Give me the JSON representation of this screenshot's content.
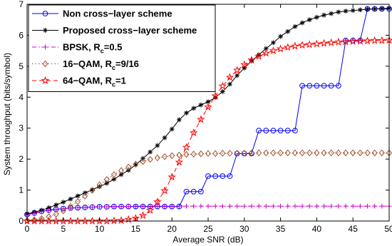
{
  "chart_data": {
    "type": "line",
    "title": "",
    "xlabel": "Average SNR (dB)",
    "ylabel": "System throughput (bits/symbol)",
    "xlim": [
      0,
      50
    ],
    "ylim": [
      0,
      7
    ],
    "xticks": [
      0,
      5,
      10,
      15,
      20,
      25,
      30,
      35,
      40,
      45,
      50
    ],
    "yticks": [
      0,
      1,
      2,
      3,
      4,
      5,
      6,
      7
    ],
    "grid": false,
    "legend_position": "top-left",
    "series": [
      {
        "name": "Non cross-layer scheme",
        "legend_main": "Non cross−layer scheme",
        "legend_sub": "",
        "legend_tail": "",
        "color": "#0000ff",
        "linestyle": "solid",
        "marker": "circle",
        "x": [
          0,
          1,
          2,
          3,
          4,
          5,
          6,
          7,
          8,
          9,
          10,
          11,
          12,
          13,
          14,
          15,
          16,
          17,
          18,
          19,
          20,
          21,
          22,
          23,
          24,
          25,
          26,
          27,
          28,
          29,
          30,
          31,
          32,
          33,
          34,
          35,
          36,
          37,
          38,
          39,
          40,
          41,
          42,
          43,
          44,
          45,
          46,
          47,
          48,
          49,
          50
        ],
        "y": [
          0.21,
          0.26,
          0.31,
          0.35,
          0.38,
          0.4,
          0.42,
          0.43,
          0.44,
          0.45,
          0.46,
          0.46,
          0.47,
          0.47,
          0.47,
          0.47,
          0.47,
          0.47,
          0.47,
          0.47,
          0.47,
          0.47,
          0.95,
          0.95,
          0.95,
          1.45,
          1.45,
          1.45,
          1.45,
          2.18,
          2.18,
          2.18,
          2.92,
          2.92,
          2.92,
          2.92,
          2.92,
          2.92,
          4.37,
          4.37,
          4.37,
          4.37,
          4.37,
          4.37,
          5.83,
          5.83,
          5.83,
          6.85,
          6.85,
          6.85,
          6.85
        ]
      },
      {
        "name": "Proposed cross-layer scheme",
        "legend_main": "Proposed cross−layer scheme",
        "legend_sub": "",
        "legend_tail": "",
        "color": "#000000",
        "linestyle": "solid",
        "marker": "asterisk",
        "x": [
          0,
          1,
          2,
          3,
          4,
          5,
          6,
          7,
          8,
          9,
          10,
          11,
          12,
          13,
          14,
          15,
          16,
          17,
          18,
          19,
          20,
          21,
          22,
          23,
          24,
          25,
          26,
          27,
          28,
          29,
          30,
          31,
          32,
          33,
          34,
          35,
          36,
          37,
          38,
          39,
          40,
          41,
          42,
          43,
          44,
          45,
          46,
          47,
          48,
          49,
          50
        ],
        "y": [
          0.23,
          0.29,
          0.35,
          0.43,
          0.52,
          0.61,
          0.71,
          0.81,
          0.91,
          1.01,
          1.11,
          1.22,
          1.35,
          1.5,
          1.64,
          1.82,
          2.02,
          2.23,
          2.44,
          2.69,
          2.97,
          3.27,
          3.49,
          3.64,
          3.75,
          3.85,
          3.99,
          4.18,
          4.42,
          4.7,
          4.94,
          5.17,
          5.37,
          5.57,
          5.76,
          5.96,
          6.12,
          6.28,
          6.4,
          6.5,
          6.58,
          6.65,
          6.7,
          6.75,
          6.78,
          6.8,
          6.82,
          6.84,
          6.85,
          6.86,
          6.87
        ]
      },
      {
        "name": "BPSK, R_c=0.5",
        "legend_main": "BPSK, R",
        "legend_sub": "c",
        "legend_tail": "=0.5",
        "color": "#cc00cc",
        "linestyle": "dashdot",
        "marker": "plus",
        "x": [
          0,
          1,
          2,
          3,
          4,
          5,
          6,
          7,
          8,
          9,
          10,
          11,
          12,
          13,
          14,
          15,
          16,
          17,
          18,
          19,
          20,
          21,
          22,
          23,
          24,
          25,
          26,
          27,
          28,
          29,
          30,
          31,
          32,
          33,
          34,
          35,
          36,
          37,
          38,
          39,
          40,
          41,
          42,
          43,
          44,
          45,
          46,
          47,
          48,
          49,
          50
        ],
        "y": [
          0.2,
          0.25,
          0.3,
          0.34,
          0.37,
          0.4,
          0.42,
          0.43,
          0.44,
          0.45,
          0.46,
          0.46,
          0.47,
          0.47,
          0.47,
          0.48,
          0.48,
          0.48,
          0.48,
          0.48,
          0.48,
          0.48,
          0.48,
          0.48,
          0.48,
          0.48,
          0.48,
          0.48,
          0.48,
          0.48,
          0.48,
          0.48,
          0.48,
          0.48,
          0.48,
          0.48,
          0.48,
          0.48,
          0.48,
          0.48,
          0.48,
          0.48,
          0.48,
          0.48,
          0.48,
          0.48,
          0.48,
          0.48,
          0.48,
          0.48,
          0.48
        ]
      },
      {
        "name": "16-QAM, R_c=9/16",
        "legend_main": "16−QAM, R",
        "legend_sub": "c",
        "legend_tail": "=9/16",
        "color": "#a0522d",
        "linestyle": "dotted",
        "marker": "diamond",
        "x": [
          0,
          1,
          2,
          3,
          4,
          5,
          6,
          7,
          8,
          9,
          10,
          11,
          12,
          13,
          14,
          15,
          16,
          17,
          18,
          19,
          20,
          21,
          22,
          23,
          24,
          25,
          26,
          27,
          28,
          29,
          30,
          31,
          32,
          33,
          34,
          35,
          36,
          37,
          38,
          39,
          40,
          41,
          42,
          43,
          44,
          45,
          46,
          47,
          48,
          49,
          50
        ],
        "y": [
          0.02,
          0.04,
          0.08,
          0.14,
          0.22,
          0.33,
          0.47,
          0.63,
          0.81,
          0.99,
          1.17,
          1.34,
          1.5,
          1.63,
          1.74,
          1.84,
          1.92,
          1.99,
          2.04,
          2.08,
          2.11,
          2.13,
          2.15,
          2.16,
          2.17,
          2.18,
          2.18,
          2.19,
          2.19,
          2.19,
          2.19,
          2.2,
          2.2,
          2.2,
          2.2,
          2.2,
          2.2,
          2.2,
          2.2,
          2.2,
          2.2,
          2.2,
          2.2,
          2.2,
          2.2,
          2.2,
          2.2,
          2.2,
          2.2,
          2.2,
          2.2
        ]
      },
      {
        "name": "64-QAM, R_c=1",
        "legend_main": "64−QAM, R",
        "legend_sub": "c",
        "legend_tail": "=1",
        "color": "#ff0000",
        "linestyle": "dashed",
        "marker": "star",
        "x": [
          0,
          1,
          2,
          3,
          4,
          5,
          6,
          7,
          8,
          9,
          10,
          11,
          12,
          13,
          14,
          15,
          16,
          17,
          18,
          19,
          20,
          21,
          22,
          23,
          24,
          25,
          26,
          27,
          28,
          29,
          30,
          31,
          32,
          33,
          34,
          35,
          36,
          37,
          38,
          39,
          40,
          41,
          42,
          43,
          44,
          45,
          46,
          47,
          48,
          49,
          50
        ],
        "y": [
          0,
          0,
          0,
          0,
          0,
          0,
          0,
          0,
          0,
          0,
          0,
          0,
          0.01,
          0.02,
          0.05,
          0.09,
          0.18,
          0.35,
          0.62,
          0.98,
          1.42,
          1.9,
          2.38,
          2.85,
          3.28,
          3.68,
          4.04,
          4.36,
          4.64,
          4.87,
          5.05,
          5.2,
          5.32,
          5.42,
          5.5,
          5.56,
          5.61,
          5.65,
          5.68,
          5.7,
          5.72,
          5.74,
          5.76,
          5.78,
          5.79,
          5.8,
          5.81,
          5.82,
          5.83,
          5.83,
          5.84
        ]
      }
    ]
  }
}
